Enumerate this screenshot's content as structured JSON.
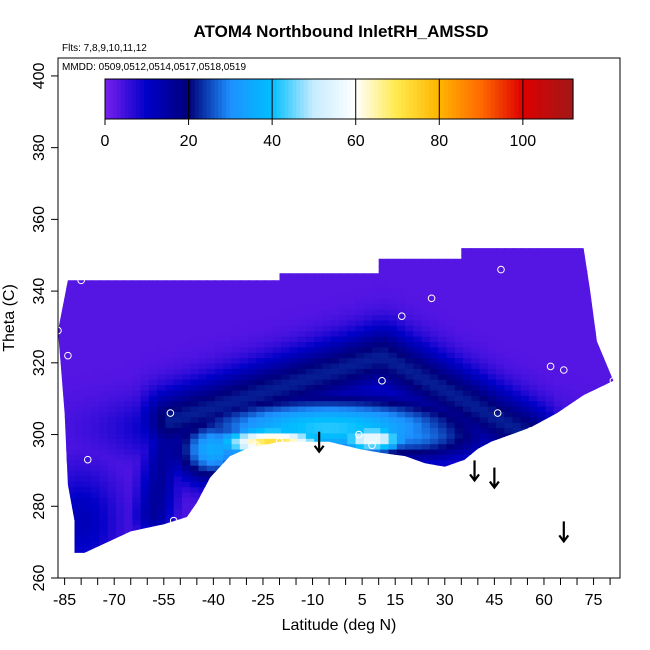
{
  "chart_data": {
    "type": "heatmap",
    "title": "ATOM4 Northbound InletRH_AMSSD",
    "flights_note": "Flts: 7,8,9,10,11,12",
    "dates_note": "MMDD: 0509,0512,0514,0517,0518,0519",
    "xlabel": "Latitude (deg N)",
    "ylabel": "Theta (C)",
    "xlim": [
      -87,
      83
    ],
    "ylim": [
      260,
      405
    ],
    "x_ticks": [
      -85,
      -70,
      -55,
      -40,
      -25,
      -10,
      5,
      15,
      30,
      45,
      60,
      75
    ],
    "y_ticks": [
      260,
      280,
      300,
      320,
      340,
      360,
      380,
      400
    ],
    "colorbar": {
      "min": 0,
      "max": 112,
      "ticks": [
        0,
        20,
        40,
        60,
        80,
        100
      ],
      "stops": [
        {
          "v": 0,
          "color": "#7a1fef"
        },
        {
          "v": 10,
          "color": "#0000c8"
        },
        {
          "v": 20,
          "color": "#00007a"
        },
        {
          "v": 30,
          "color": "#1e90ff"
        },
        {
          "v": 40,
          "color": "#00bfff"
        },
        {
          "v": 50,
          "color": "#c8ecff"
        },
        {
          "v": 60,
          "color": "#ffffff"
        },
        {
          "v": 70,
          "color": "#ffe94a"
        },
        {
          "v": 80,
          "color": "#ffb400"
        },
        {
          "v": 90,
          "color": "#ff6a00"
        },
        {
          "v": 100,
          "color": "#dd0000"
        },
        {
          "v": 112,
          "color": "#a01818"
        }
      ]
    },
    "field": {
      "background_value": 3,
      "outline": [
        [
          -82,
          267
        ],
        [
          -82,
          276
        ],
        [
          -84,
          286
        ],
        [
          -85,
          306
        ],
        [
          -87,
          329
        ],
        [
          -84,
          343
        ],
        [
          -20,
          343
        ],
        [
          -20,
          345
        ],
        [
          10,
          345
        ],
        [
          10,
          349
        ],
        [
          35,
          349
        ],
        [
          35,
          352
        ],
        [
          72,
          352
        ],
        [
          74,
          340
        ],
        [
          76,
          326
        ],
        [
          81,
          315
        ],
        [
          72,
          311
        ],
        [
          64,
          306
        ],
        [
          56,
          302
        ],
        [
          50,
          300
        ],
        [
          44,
          298
        ],
        [
          40,
          296
        ],
        [
          36,
          293
        ],
        [
          30,
          291
        ],
        [
          24,
          292
        ],
        [
          18,
          294
        ],
        [
          10,
          295
        ],
        [
          4,
          296
        ],
        [
          -5,
          298
        ],
        [
          -20,
          298
        ],
        [
          -30,
          296
        ],
        [
          -35,
          294
        ],
        [
          -41,
          288
        ],
        [
          -45,
          281
        ],
        [
          -48,
          277
        ],
        [
          -55,
          275
        ],
        [
          -65,
          273
        ],
        [
          -72,
          270
        ],
        [
          -79,
          267
        ]
      ],
      "features": [
        {
          "type": "segment",
          "from": [
            -53,
            304
          ],
          "to": [
            11,
            322
          ],
          "peak": 22,
          "width": 6
        },
        {
          "type": "segment",
          "from": [
            11,
            322
          ],
          "to": [
            55,
            300
          ],
          "peak": 22,
          "width": 6
        },
        {
          "type": "segment",
          "from": [
            -53,
            304
          ],
          "to": [
            -58,
            278
          ],
          "peak": 16,
          "width": 4
        },
        {
          "type": "blob",
          "center": [
            -5,
            302
          ],
          "radius": [
            30,
            6
          ],
          "peak": 42
        },
        {
          "type": "blob",
          "center": [
            18,
            300
          ],
          "radius": [
            18,
            5
          ],
          "peak": 30
        },
        {
          "type": "blob",
          "center": [
            -22,
            298
          ],
          "radius": [
            12,
            3
          ],
          "peak": 72
        },
        {
          "type": "blob",
          "center": [
            8,
            299
          ],
          "radius": [
            8,
            3
          ],
          "peak": 58
        },
        {
          "type": "blob",
          "center": [
            -40,
            296
          ],
          "radius": [
            8,
            6
          ],
          "peak": 36
        },
        {
          "type": "blob",
          "center": [
            -80,
            276
          ],
          "radius": [
            8,
            10
          ],
          "peak": 12
        }
      ]
    },
    "sample_points": [
      [
        -80,
        343
      ],
      [
        -87,
        329
      ],
      [
        -84,
        322
      ],
      [
        -53,
        306
      ],
      [
        -78,
        293
      ],
      [
        -52,
        276
      ],
      [
        -27,
        297
      ],
      [
        -20,
        298
      ],
      [
        4,
        300
      ],
      [
        8,
        297
      ],
      [
        11,
        315
      ],
      [
        17,
        333
      ],
      [
        26,
        338
      ],
      [
        46,
        306
      ],
      [
        47,
        346
      ],
      [
        56,
        301
      ],
      [
        62,
        319
      ],
      [
        66,
        318
      ],
      [
        81,
        315
      ]
    ],
    "arrows": [
      {
        "lat": -8,
        "theta": 298
      },
      {
        "lat": 39,
        "theta": 290
      },
      {
        "lat": 45,
        "theta": 288
      },
      {
        "lat": 66,
        "theta": 273
      }
    ]
  }
}
